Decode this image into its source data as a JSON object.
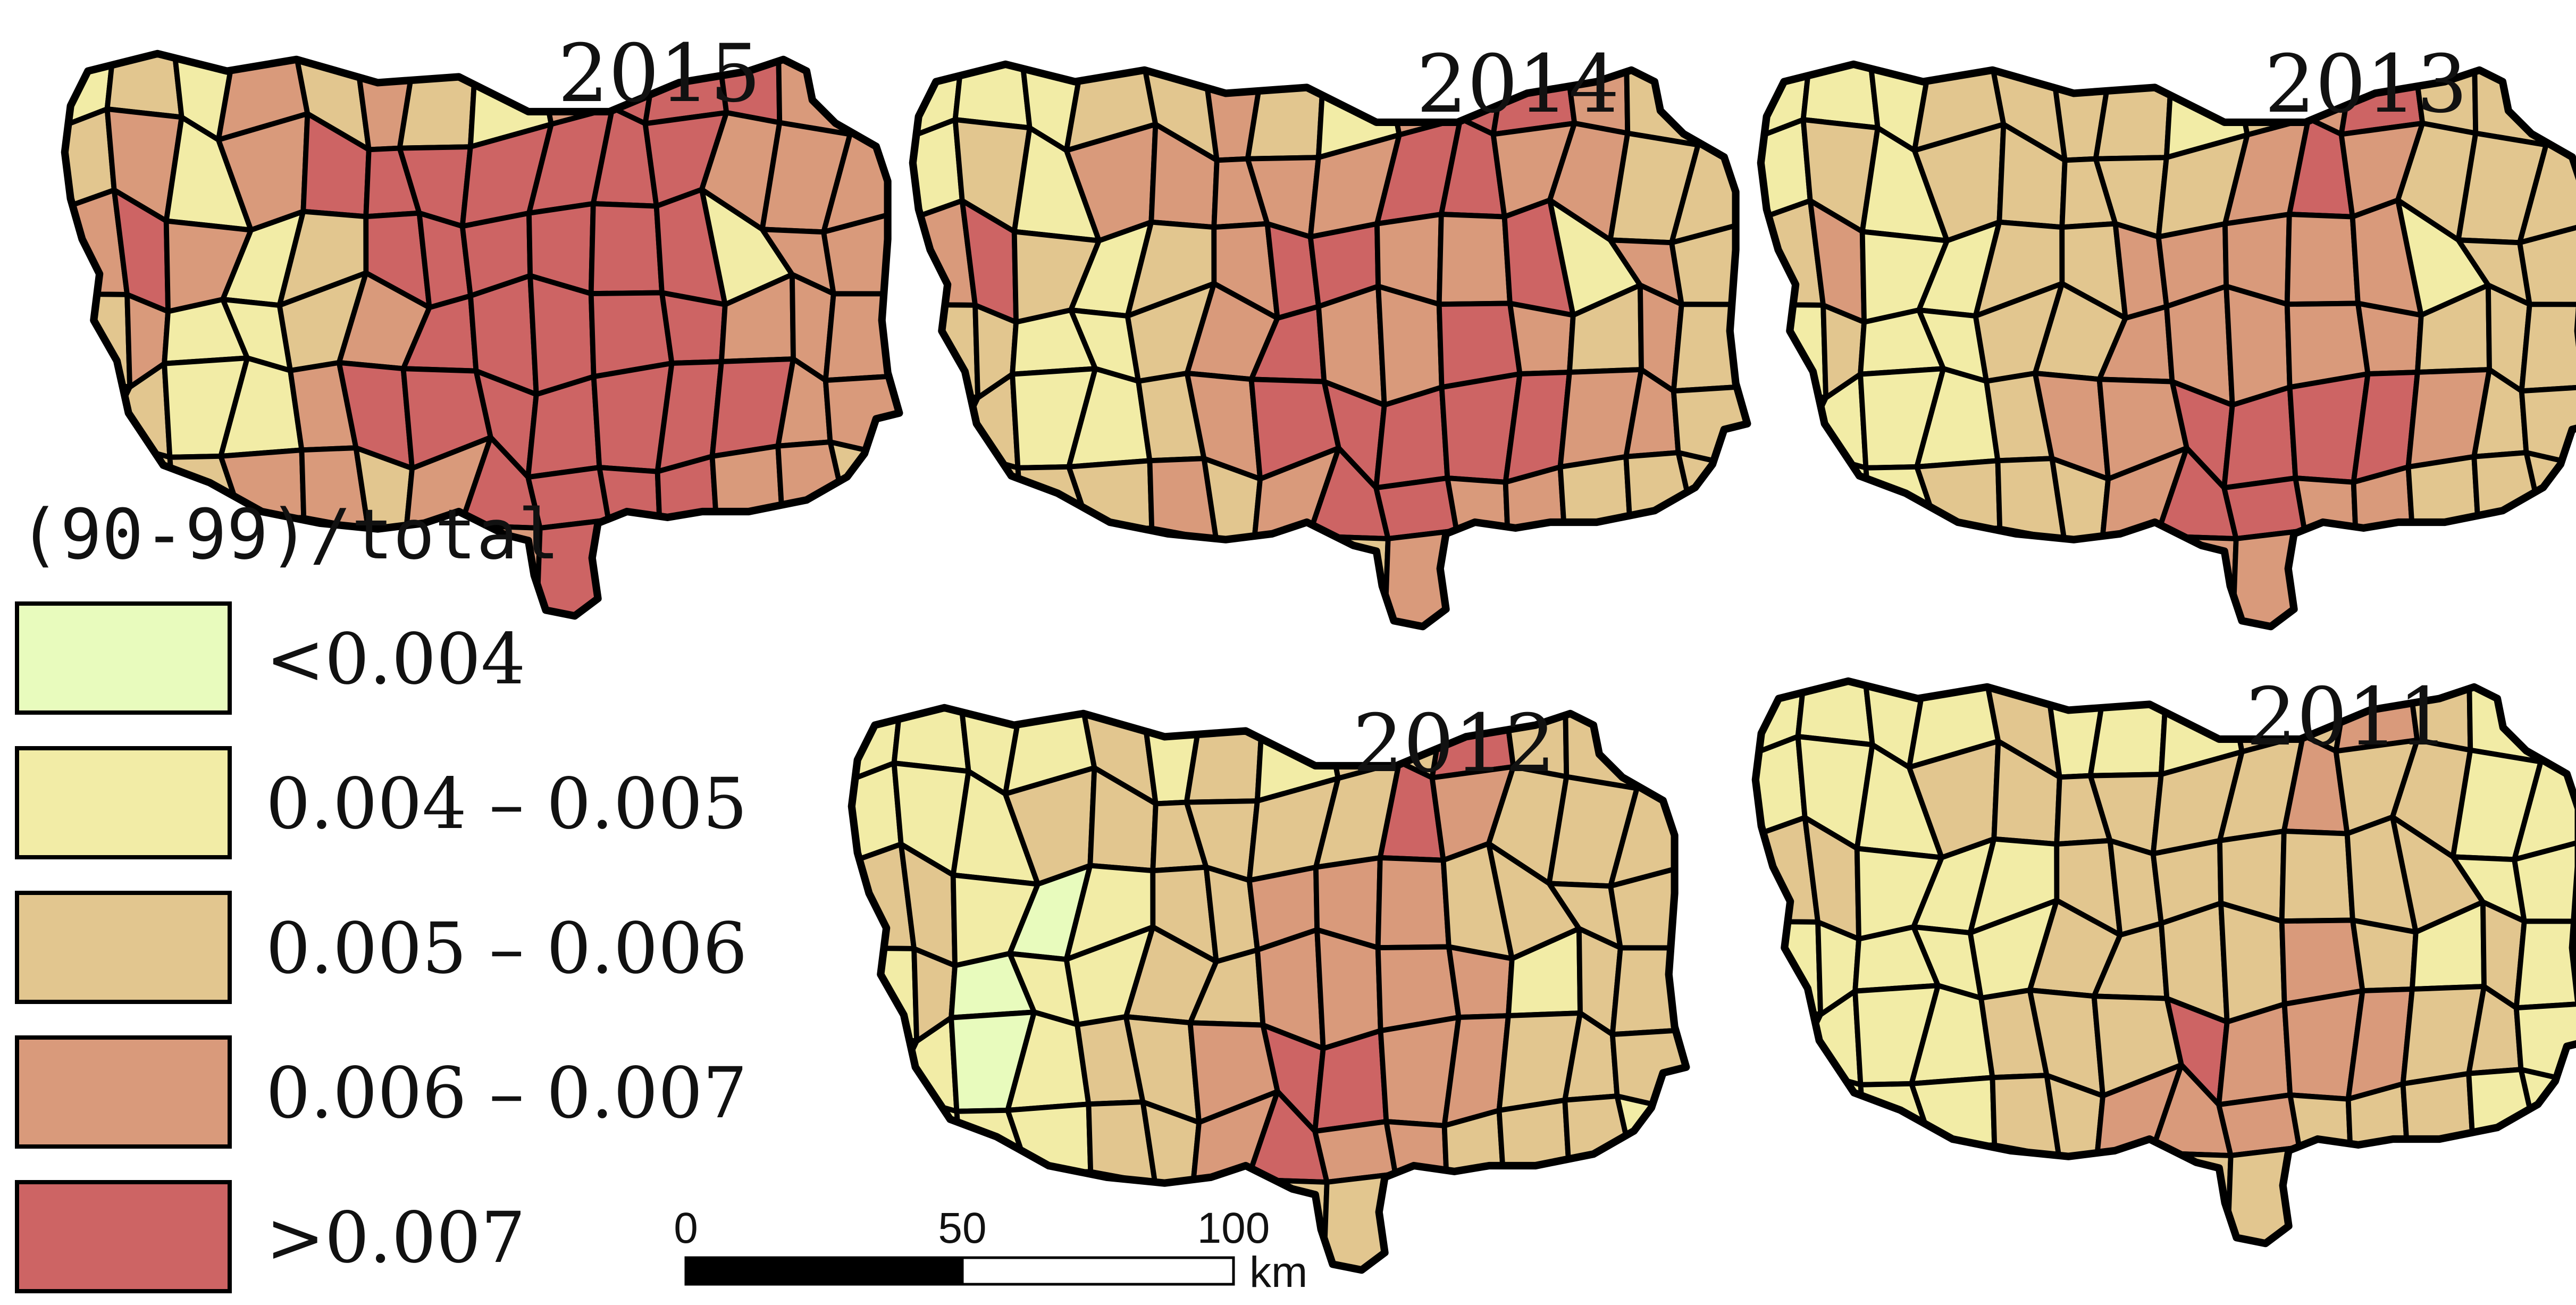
{
  "legend": {
    "title": "(90-99)/total",
    "classes": [
      {
        "label": "<0.004",
        "color": "#e8fbbd"
      },
      {
        "label": "0.004 – 0.005",
        "color": "#f2eca6"
      },
      {
        "label": "0.005 – 0.006",
        "color": "#e2c68f"
      },
      {
        "label": "0.006 – 0.007",
        "color": "#d99a7b"
      },
      {
        "label": ">0.007",
        "color": "#cd6464"
      }
    ]
  },
  "maps": [
    {
      "year": "2015",
      "grid": [
        [
          1,
          2,
          1,
          3,
          2,
          3,
          2,
          1,
          3,
          4,
          4,
          4,
          3,
          3
        ],
        [
          2,
          3,
          1,
          3,
          4,
          4,
          4,
          4,
          4,
          4,
          4,
          3,
          3,
          3
        ],
        [
          3,
          4,
          3,
          1,
          2,
          4,
          4,
          4,
          4,
          4,
          4,
          1,
          3,
          3
        ],
        [
          2,
          3,
          1,
          1,
          2,
          3,
          4,
          4,
          4,
          4,
          4,
          3,
          3,
          3
        ],
        [
          2,
          2,
          1,
          1,
          3,
          4,
          4,
          4,
          4,
          4,
          4,
          4,
          3,
          3
        ],
        [
          2,
          2,
          2,
          3,
          3,
          2,
          3,
          4,
          4,
          4,
          4,
          3,
          3,
          2
        ],
        [
          2,
          2,
          2,
          2,
          2,
          2,
          3,
          3,
          4,
          4,
          3,
          3,
          3,
          2
        ]
      ]
    },
    {
      "year": "2014",
      "grid": [
        [
          1,
          1,
          1,
          2,
          2,
          3,
          2,
          1,
          3,
          4,
          4,
          3,
          2,
          2
        ],
        [
          1,
          2,
          1,
          3,
          3,
          3,
          3,
          3,
          4,
          4,
          3,
          3,
          2,
          2
        ],
        [
          3,
          4,
          2,
          1,
          2,
          3,
          4,
          4,
          3,
          3,
          4,
          1,
          3,
          2
        ],
        [
          2,
          2,
          1,
          1,
          2,
          3,
          4,
          3,
          3,
          4,
          3,
          2,
          3,
          2
        ],
        [
          2,
          2,
          1,
          1,
          2,
          3,
          4,
          4,
          4,
          4,
          4,
          3,
          3,
          2
        ],
        [
          1,
          2,
          2,
          2,
          3,
          2,
          3,
          4,
          4,
          3,
          3,
          2,
          2,
          2
        ],
        [
          1,
          2,
          2,
          2,
          2,
          2,
          2,
          2,
          3,
          3,
          2,
          2,
          2,
          2
        ]
      ]
    },
    {
      "year": "2013",
      "grid": [
        [
          1,
          1,
          1,
          2,
          2,
          2,
          2,
          1,
          2,
          3,
          4,
          2,
          2,
          1
        ],
        [
          1,
          2,
          1,
          2,
          2,
          2,
          2,
          2,
          3,
          4,
          3,
          2,
          2,
          2
        ],
        [
          2,
          3,
          1,
          1,
          2,
          2,
          3,
          3,
          3,
          3,
          3,
          1,
          2,
          2
        ],
        [
          1,
          2,
          1,
          1,
          2,
          2,
          3,
          3,
          3,
          3,
          3,
          2,
          2,
          2
        ],
        [
          1,
          1,
          1,
          1,
          2,
          3,
          3,
          4,
          4,
          4,
          4,
          3,
          2,
          2
        ],
        [
          1,
          1,
          1,
          2,
          2,
          2,
          3,
          4,
          4,
          3,
          3,
          2,
          2,
          2
        ],
        [
          1,
          1,
          1,
          2,
          2,
          2,
          2,
          3,
          3,
          2,
          2,
          2,
          2,
          1
        ]
      ]
    },
    {
      "year": "2012",
      "grid": [
        [
          1,
          1,
          1,
          1,
          2,
          1,
          2,
          1,
          2,
          2,
          4,
          2,
          2,
          1
        ],
        [
          1,
          1,
          1,
          2,
          2,
          2,
          2,
          2,
          2,
          4,
          3,
          2,
          2,
          2
        ],
        [
          2,
          2,
          1,
          0,
          1,
          2,
          2,
          3,
          3,
          3,
          2,
          2,
          2,
          2
        ],
        [
          1,
          2,
          0,
          1,
          1,
          2,
          2,
          3,
          3,
          3,
          3,
          1,
          2,
          2
        ],
        [
          1,
          1,
          0,
          1,
          2,
          2,
          3,
          4,
          4,
          3,
          3,
          2,
          2,
          2
        ],
        [
          1,
          1,
          1,
          1,
          2,
          2,
          3,
          4,
          3,
          3,
          2,
          2,
          2,
          1
        ],
        [
          1,
          1,
          1,
          1,
          1,
          2,
          2,
          2,
          2,
          2,
          2,
          2,
          1,
          1
        ]
      ]
    },
    {
      "year": "2011",
      "grid": [
        [
          1,
          1,
          1,
          1,
          2,
          1,
          1,
          1,
          2,
          2,
          3,
          2,
          1,
          1
        ],
        [
          1,
          1,
          1,
          2,
          2,
          2,
          2,
          2,
          2,
          3,
          2,
          2,
          1,
          1
        ],
        [
          2,
          2,
          1,
          1,
          1,
          2,
          2,
          2,
          2,
          2,
          2,
          2,
          1,
          1
        ],
        [
          1,
          1,
          1,
          1,
          1,
          2,
          2,
          2,
          2,
          3,
          2,
          1,
          2,
          1
        ],
        [
          1,
          1,
          1,
          1,
          2,
          2,
          2,
          4,
          3,
          3,
          3,
          2,
          2,
          1
        ],
        [
          1,
          1,
          1,
          1,
          2,
          2,
          3,
          3,
          3,
          2,
          2,
          2,
          1,
          1
        ],
        [
          1,
          1,
          1,
          1,
          1,
          1,
          2,
          2,
          2,
          2,
          2,
          1,
          1,
          1
        ]
      ]
    }
  ],
  "scale_bar": {
    "ticks": [
      "0",
      "50",
      "100"
    ],
    "unit": "km"
  }
}
